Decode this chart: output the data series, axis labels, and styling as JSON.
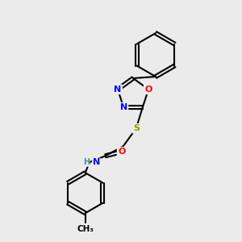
{
  "background_color": "#ebebeb",
  "bond_color": "#000000",
  "atom_colors": {
    "N": "#0000ff",
    "O": "#ff0000",
    "S": "#999900",
    "H": "#4a9090",
    "C": "#000000"
  },
  "figsize": [
    3.0,
    3.0
  ],
  "dpi": 100
}
